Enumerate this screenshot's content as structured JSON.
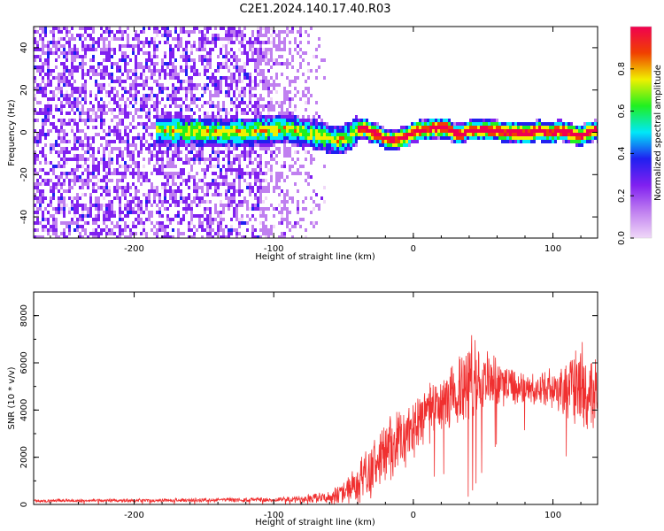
{
  "title": "C2E1.2024.140.17.40.R03",
  "colors": {
    "signal": "#f03030",
    "frame": "#000000",
    "background": "#ffffff"
  },
  "chart_data": [
    {
      "type": "heatmap",
      "xlabel": "Height of straight line (km)",
      "ylabel": "Frequency (Hz)",
      "xlim": [
        -272,
        132
      ],
      "ylim": [
        -50,
        50
      ],
      "xticks": [
        -200,
        -100,
        0,
        100
      ],
      "xtick_labels": [
        "-200",
        "-100",
        "0",
        "100"
      ],
      "yticks": [
        -40,
        -20,
        0,
        20,
        40
      ],
      "ytick_labels": [
        "-40",
        "-20",
        "0",
        "20",
        "40"
      ],
      "colorbar": {
        "label": "Normalized spectral amplitude",
        "range": [
          0,
          1
        ],
        "ticks": [
          0,
          0.2,
          0.4,
          0.6,
          0.8
        ],
        "tick_labels": [
          "0.0",
          "0.2",
          "0.4",
          "0.6",
          "0.8"
        ],
        "colormap": [
          "#f0d8f8",
          "#c080f0",
          "#8020f0",
          "#2020f0",
          "#00e8f8",
          "#20f020",
          "#f0f000",
          "#f04000",
          "#f00050"
        ]
      },
      "noise_region_x": [
        -272,
        -62
      ],
      "band_start_x": -185,
      "band_centerline": [
        [
          -185,
          1
        ],
        [
          -150,
          0
        ],
        [
          -120,
          0
        ],
        [
          -100,
          1
        ],
        [
          -90,
          2
        ],
        [
          -80,
          0
        ],
        [
          -70,
          -1
        ],
        [
          -60,
          -3
        ],
        [
          -55,
          -4
        ],
        [
          -45,
          -2
        ],
        [
          -40,
          1
        ],
        [
          -35,
          2
        ],
        [
          -30,
          0
        ],
        [
          -25,
          -1
        ],
        [
          -20,
          -3
        ],
        [
          -15,
          -4
        ],
        [
          -10,
          -3
        ],
        [
          -5,
          -2
        ],
        [
          0,
          0
        ],
        [
          5,
          1
        ],
        [
          10,
          1
        ],
        [
          15,
          2
        ],
        [
          20,
          2
        ],
        [
          25,
          2
        ],
        [
          30,
          -1
        ],
        [
          35,
          -1
        ],
        [
          40,
          1
        ],
        [
          50,
          1
        ],
        [
          60,
          1
        ],
        [
          65,
          0
        ],
        [
          70,
          0
        ],
        [
          75,
          0
        ],
        [
          80,
          -1
        ],
        [
          85,
          0
        ],
        [
          90,
          1
        ],
        [
          95,
          0
        ],
        [
          100,
          0
        ],
        [
          105,
          1
        ],
        [
          110,
          0
        ],
        [
          115,
          -1
        ],
        [
          120,
          -2
        ],
        [
          125,
          0
        ],
        [
          132,
          1
        ]
      ]
    },
    {
      "type": "line",
      "xlabel": "Height of straight line (km)",
      "ylabel": "SNR (10 * v/v)",
      "xlim": [
        -272,
        132
      ],
      "ylim": [
        0,
        9000
      ],
      "xticks": [
        -200,
        -100,
        0,
        100
      ],
      "xtick_labels": [
        "-200",
        "-100",
        "0",
        "100"
      ],
      "yticks": [
        0,
        2000,
        4000,
        6000,
        8000
      ],
      "ytick_labels": [
        "0",
        "2000",
        "4000",
        "6000",
        "8000"
      ],
      "series_envelope": {
        "x": [
          -272,
          -200,
          -150,
          -100,
          -80,
          -60,
          -50,
          -40,
          -30,
          -20,
          -10,
          0,
          10,
          20,
          30,
          35,
          40,
          45,
          50,
          60,
          70,
          80,
          90,
          100,
          110,
          120,
          125,
          132
        ],
        "median": [
          150,
          170,
          180,
          200,
          230,
          300,
          500,
          900,
          1500,
          2100,
          2700,
          3300,
          3800,
          4300,
          4700,
          5000,
          5300,
          5400,
          5200,
          5100,
          5000,
          4900,
          4800,
          4900,
          5000,
          5000,
          4800,
          4600
        ],
        "spread": [
          60,
          70,
          80,
          100,
          150,
          250,
          500,
          800,
          1100,
          1300,
          1300,
          1200,
          1100,
          1200,
          1400,
          1800,
          2000,
          1800,
          1500,
          1000,
          800,
          700,
          700,
          800,
          1200,
          1700,
          1800,
          1500
        ]
      }
    }
  ]
}
